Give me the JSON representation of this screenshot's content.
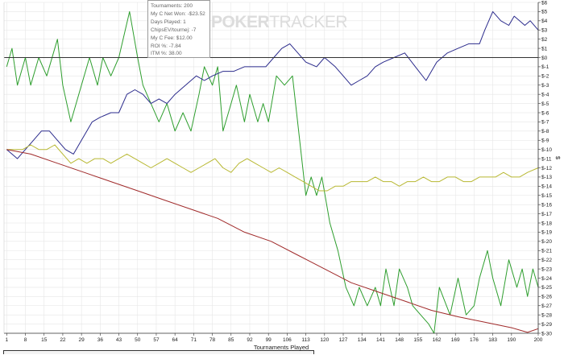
{
  "tooltip": {
    "lines": [
      "Tournaments: 200",
      "My C Net Won: -$23.52",
      "Days Played: 1",
      "ChipsEV/tournej: -7",
      "My C Fee: $12.00",
      "ROI %: -7.84",
      "ITM %: 38.00"
    ]
  },
  "watermark": {
    "bold": "POKER",
    "thin": "TRACKER"
  },
  "chart_data": {
    "type": "line",
    "xlabel": "Tournaments Played",
    "ylabel": "$",
    "x_range": [
      0,
      200
    ],
    "ylim": [
      -30,
      6
    ],
    "x_ticks": [
      1,
      8,
      15,
      22,
      29,
      36,
      43,
      50,
      57,
      64,
      71,
      78,
      85,
      92,
      99,
      106,
      113,
      120,
      127,
      134,
      141,
      148,
      155,
      162,
      169,
      176,
      183,
      190,
      200
    ],
    "y_ticks": [
      6,
      5,
      4,
      3,
      2,
      1,
      0,
      -1,
      -2,
      -3,
      -4,
      -5,
      -6,
      -7,
      -8,
      -9,
      -10,
      -11,
      -12,
      -13,
      -14,
      -15,
      -16,
      -17,
      -18,
      -19,
      -20,
      -21,
      -22,
      -23,
      -24,
      -25,
      -26,
      -27,
      -28,
      -29,
      -30
    ],
    "y_tick_labels": [
      "$6",
      "$5",
      "$4",
      "$3",
      "$2",
      "$1",
      "$0",
      "$-1",
      "$-2",
      "$-3",
      "$-4",
      "$-5",
      "$-6",
      "$-7",
      "$-8",
      "$-9",
      "$-10",
      "$-11",
      "$-12",
      "$-13",
      "$-14",
      "$-15",
      "$-16",
      "$-17",
      "$-18",
      "$-19",
      "$-20",
      "$-21",
      "$-22",
      "$-23",
      "$-24",
      "$-25",
      "$-26",
      "$-27",
      "$-28",
      "$-29",
      "$-30"
    ],
    "zero_line": true,
    "grid": true,
    "series": [
      {
        "color": "#2e9e2e",
        "points": [
          [
            1,
            -1
          ],
          [
            3,
            1
          ],
          [
            5,
            -3
          ],
          [
            8,
            0
          ],
          [
            10,
            -3
          ],
          [
            13,
            0
          ],
          [
            16,
            -2
          ],
          [
            20,
            2
          ],
          [
            22,
            -3
          ],
          [
            25,
            -7
          ],
          [
            29,
            -3
          ],
          [
            32,
            0
          ],
          [
            35,
            -3
          ],
          [
            37,
            0
          ],
          [
            40,
            -2
          ],
          [
            43,
            0
          ],
          [
            47,
            5
          ],
          [
            50,
            0
          ],
          [
            52,
            -3
          ],
          [
            55,
            -5
          ],
          [
            58,
            -7
          ],
          [
            61,
            -5
          ],
          [
            64,
            -8
          ],
          [
            67,
            -6
          ],
          [
            70,
            -8
          ],
          [
            73,
            -4
          ],
          [
            75,
            -1
          ],
          [
            78,
            -3
          ],
          [
            80,
            -1
          ],
          [
            82,
            -8
          ],
          [
            84,
            -6
          ],
          [
            87,
            -3
          ],
          [
            90,
            -7
          ],
          [
            92,
            -4
          ],
          [
            95,
            -7
          ],
          [
            97,
            -5
          ],
          [
            99,
            -7
          ],
          [
            102,
            -2
          ],
          [
            105,
            -3
          ],
          [
            108,
            -2
          ],
          [
            113,
            -15
          ],
          [
            115,
            -13
          ],
          [
            117,
            -15
          ],
          [
            119,
            -13
          ],
          [
            122,
            -18
          ],
          [
            125,
            -21
          ],
          [
            128,
            -25
          ],
          [
            131,
            -27
          ],
          [
            133,
            -25
          ],
          [
            136,
            -27
          ],
          [
            139,
            -25
          ],
          [
            141,
            -27
          ],
          [
            143,
            -23
          ],
          [
            146,
            -27
          ],
          [
            148,
            -23
          ],
          [
            151,
            -25
          ],
          [
            153,
            -27
          ],
          [
            156,
            -28
          ],
          [
            159,
            -29
          ],
          [
            161,
            -30
          ],
          [
            163,
            -25
          ],
          [
            167,
            -28
          ],
          [
            170,
            -24
          ],
          [
            173,
            -28
          ],
          [
            176,
            -27
          ],
          [
            178,
            -24
          ],
          [
            181,
            -21
          ],
          [
            183,
            -24
          ],
          [
            186,
            -27
          ],
          [
            189,
            -22
          ],
          [
            192,
            -25
          ],
          [
            194,
            -23
          ],
          [
            196,
            -26
          ],
          [
            198,
            -23
          ],
          [
            200,
            -25
          ]
        ]
      },
      {
        "color": "#2b2b8c",
        "points": [
          [
            1,
            -10
          ],
          [
            3,
            -10.5
          ],
          [
            5,
            -11
          ],
          [
            8,
            -10
          ],
          [
            11,
            -9
          ],
          [
            14,
            -8
          ],
          [
            17,
            -8
          ],
          [
            20,
            -9
          ],
          [
            23,
            -10
          ],
          [
            26,
            -10.5
          ],
          [
            29,
            -9
          ],
          [
            33,
            -7
          ],
          [
            36,
            -6.5
          ],
          [
            40,
            -6
          ],
          [
            43,
            -6
          ],
          [
            46,
            -4
          ],
          [
            49,
            -3.5
          ],
          [
            52,
            -4
          ],
          [
            55,
            -5
          ],
          [
            58,
            -4.5
          ],
          [
            61,
            -5
          ],
          [
            64,
            -4
          ],
          [
            68,
            -3
          ],
          [
            72,
            -2
          ],
          [
            75,
            -2.5
          ],
          [
            78,
            -2
          ],
          [
            82,
            -1.5
          ],
          [
            86,
            -1.5
          ],
          [
            90,
            -1
          ],
          [
            94,
            -1
          ],
          [
            98,
            -1
          ],
          [
            101,
            0
          ],
          [
            104,
            1
          ],
          [
            107,
            1.5
          ],
          [
            110,
            0.5
          ],
          [
            113,
            -0.5
          ],
          [
            117,
            -1
          ],
          [
            120,
            0
          ],
          [
            124,
            -1
          ],
          [
            127,
            -2
          ],
          [
            130,
            -3
          ],
          [
            133,
            -2.5
          ],
          [
            136,
            -2
          ],
          [
            139,
            -1
          ],
          [
            142,
            -0.5
          ],
          [
            146,
            0
          ],
          [
            150,
            0.5
          ],
          [
            154,
            -1
          ],
          [
            158,
            -2.5
          ],
          [
            162,
            -0.5
          ],
          [
            166,
            0.5
          ],
          [
            170,
            1
          ],
          [
            174,
            1.5
          ],
          [
            178,
            1.5
          ],
          [
            180,
            3
          ],
          [
            183,
            5
          ],
          [
            186,
            4
          ],
          [
            189,
            3.5
          ],
          [
            191,
            4.5
          ],
          [
            193,
            4
          ],
          [
            195,
            3.5
          ],
          [
            197,
            4
          ],
          [
            200,
            3
          ]
        ]
      },
      {
        "color": "#b8b832",
        "points": [
          [
            1,
            -10
          ],
          [
            4,
            -10
          ],
          [
            7,
            -10
          ],
          [
            10,
            -9.5
          ],
          [
            13,
            -10
          ],
          [
            16,
            -10
          ],
          [
            19,
            -9.5
          ],
          [
            22,
            -10.5
          ],
          [
            25,
            -11.5
          ],
          [
            28,
            -11
          ],
          [
            31,
            -11.5
          ],
          [
            34,
            -11
          ],
          [
            37,
            -11
          ],
          [
            40,
            -11.5
          ],
          [
            43,
            -11
          ],
          [
            46,
            -10.5
          ],
          [
            49,
            -11
          ],
          [
            52,
            -11.5
          ],
          [
            55,
            -12
          ],
          [
            58,
            -11.5
          ],
          [
            61,
            -11
          ],
          [
            64,
            -11.5
          ],
          [
            67,
            -12
          ],
          [
            70,
            -12.5
          ],
          [
            73,
            -12
          ],
          [
            76,
            -11.5
          ],
          [
            79,
            -11
          ],
          [
            82,
            -12
          ],
          [
            85,
            -12.5
          ],
          [
            88,
            -11.5
          ],
          [
            91,
            -11
          ],
          [
            94,
            -11.5
          ],
          [
            97,
            -12
          ],
          [
            100,
            -12.5
          ],
          [
            103,
            -12
          ],
          [
            106,
            -12.5
          ],
          [
            109,
            -13
          ],
          [
            112,
            -13.5
          ],
          [
            115,
            -14
          ],
          [
            118,
            -14.5
          ],
          [
            121,
            -14.5
          ],
          [
            124,
            -14
          ],
          [
            127,
            -14
          ],
          [
            130,
            -13.5
          ],
          [
            133,
            -13.5
          ],
          [
            136,
            -13.5
          ],
          [
            139,
            -13
          ],
          [
            142,
            -13.5
          ],
          [
            145,
            -13.5
          ],
          [
            148,
            -14
          ],
          [
            151,
            -13.5
          ],
          [
            154,
            -13.5
          ],
          [
            157,
            -13
          ],
          [
            160,
            -13.5
          ],
          [
            163,
            -13.5
          ],
          [
            166,
            -13
          ],
          [
            169,
            -13
          ],
          [
            172,
            -13.5
          ],
          [
            175,
            -13.5
          ],
          [
            178,
            -13
          ],
          [
            181,
            -13
          ],
          [
            184,
            -13
          ],
          [
            187,
            -12.5
          ],
          [
            190,
            -13
          ],
          [
            193,
            -13
          ],
          [
            196,
            -12.5
          ],
          [
            200,
            -12
          ]
        ]
      },
      {
        "color": "#a02a2a",
        "points": [
          [
            1,
            -10
          ],
          [
            10,
            -10.5
          ],
          [
            20,
            -11.5
          ],
          [
            30,
            -12.5
          ],
          [
            40,
            -13.5
          ],
          [
            50,
            -14.5
          ],
          [
            60,
            -15.5
          ],
          [
            70,
            -16.5
          ],
          [
            80,
            -17.5
          ],
          [
            90,
            -19
          ],
          [
            100,
            -20
          ],
          [
            110,
            -21.5
          ],
          [
            120,
            -23
          ],
          [
            130,
            -24.5
          ],
          [
            140,
            -25.5
          ],
          [
            150,
            -26.5
          ],
          [
            160,
            -27.5
          ],
          [
            170,
            -28.2
          ],
          [
            180,
            -28.8
          ],
          [
            190,
            -29.4
          ],
          [
            196,
            -29.9
          ],
          [
            200,
            -29.5
          ]
        ]
      }
    ]
  }
}
